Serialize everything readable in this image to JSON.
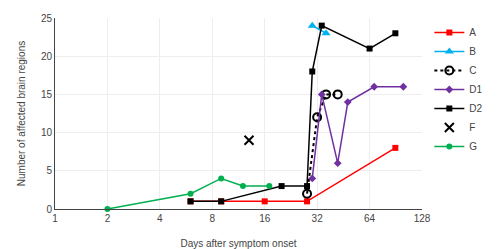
{
  "chart_data": {
    "type": "line",
    "xlabel": "Days after symptom onset",
    "ylabel": "Number of affected brain regions",
    "log": "x",
    "xlim": [
      1,
      128
    ],
    "ylim": [
      0,
      25
    ],
    "xticks": [
      1,
      2,
      4,
      8,
      16,
      32,
      64,
      128
    ],
    "yticks": [
      0,
      5,
      10,
      15,
      20,
      25
    ],
    "grid": true,
    "legend": "upper right",
    "series": [
      {
        "name": "A",
        "color": "#ff0000",
        "marker": "square",
        "line_style": "solid",
        "x": [
          6,
          9,
          16,
          28,
          90
        ],
        "values": [
          1,
          1,
          1,
          1,
          8
        ]
      },
      {
        "name": "B",
        "color": "#00b0f0",
        "marker": "triangle-up",
        "line_style": "solid",
        "x": [
          30,
          36
        ],
        "values": [
          24,
          23
        ]
      },
      {
        "name": "C",
        "color": "#000000",
        "marker": "circle-open",
        "line_style": "dotted",
        "x": [
          28,
          32,
          36,
          42
        ],
        "values": [
          2,
          12,
          15,
          15
        ]
      },
      {
        "name": "D1",
        "color": "#7030a0",
        "marker": "diamond",
        "line_style": "solid",
        "x": [
          30,
          34,
          42,
          48,
          68,
          100
        ],
        "values": [
          4,
          15,
          6,
          14,
          16,
          16
        ]
      },
      {
        "name": "D2",
        "color": "#000000",
        "marker": "square",
        "line_style": "solid",
        "x": [
          6,
          9,
          20,
          28,
          30,
          34,
          64,
          90
        ],
        "values": [
          1,
          1,
          3,
          3,
          18,
          24,
          21,
          23
        ]
      },
      {
        "name": "F",
        "color": "#000000",
        "marker": "x",
        "line_style": "none",
        "x": [
          13
        ],
        "values": [
          9
        ]
      },
      {
        "name": "G",
        "color": "#00b050",
        "marker": "circle",
        "line_style": "solid",
        "x": [
          2,
          6,
          9,
          12,
          17
        ],
        "values": [
          0,
          2,
          4,
          3,
          3
        ]
      }
    ]
  }
}
